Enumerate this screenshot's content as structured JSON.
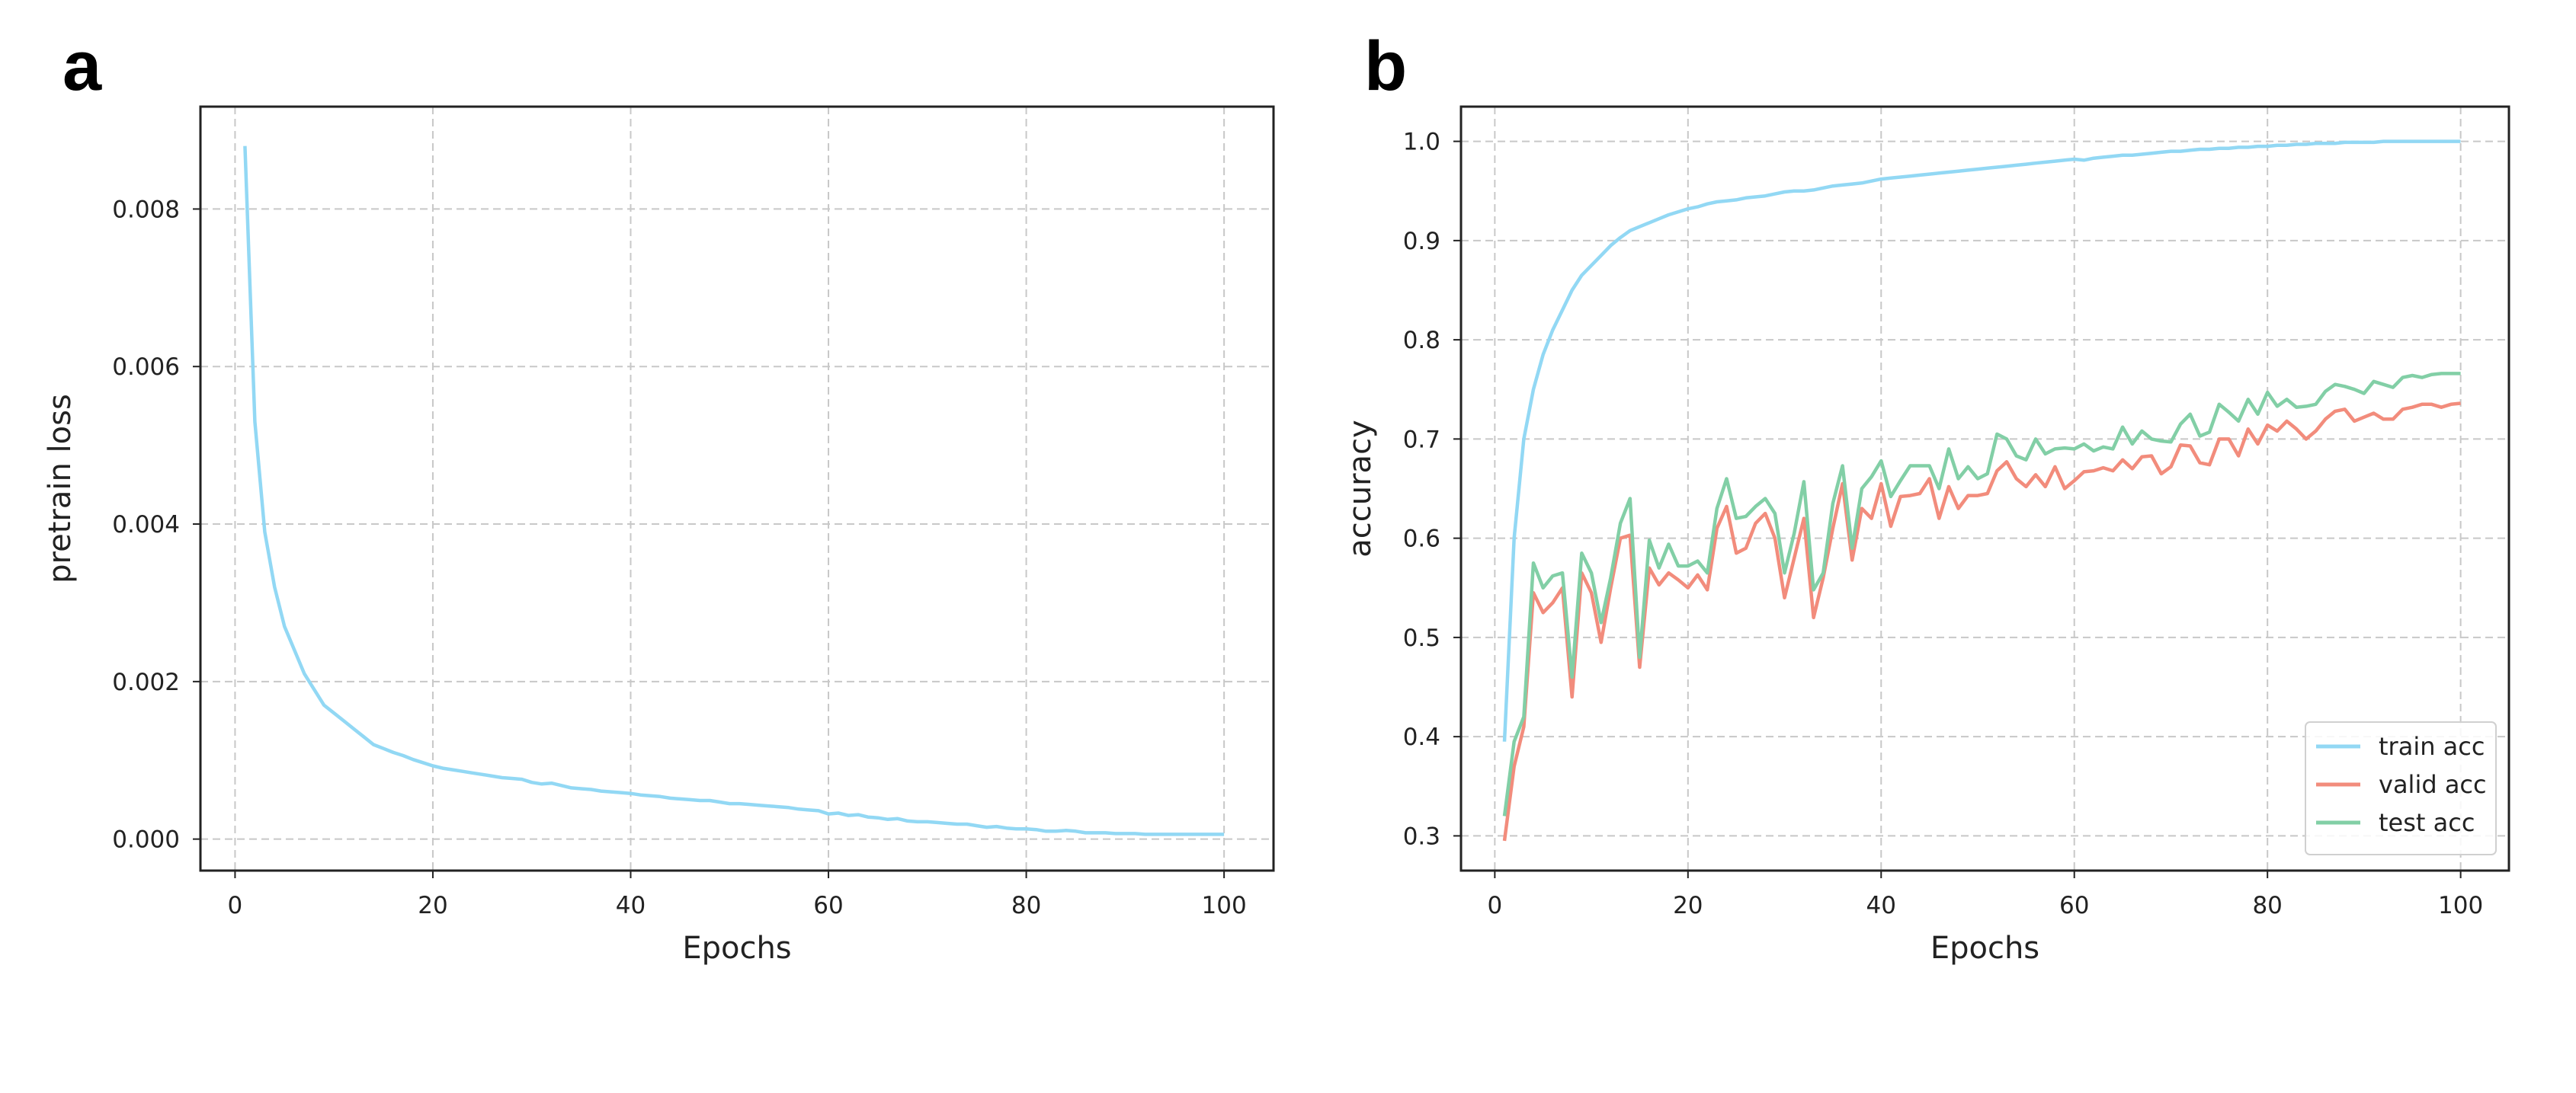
{
  "chart_data": [
    {
      "panel": "a",
      "type": "line",
      "title": "",
      "xlabel": "Epochs",
      "ylabel": "pretrain loss",
      "xlim": [
        -3.5,
        105
      ],
      "ylim": [
        -0.0004,
        0.0093
      ],
      "xticks": [
        0,
        20,
        40,
        60,
        80,
        100
      ],
      "xtick_labels": [
        "0",
        "20",
        "40",
        "60",
        "80",
        "100"
      ],
      "yticks": [
        0,
        0.002,
        0.004,
        0.006,
        0.008
      ],
      "ytick_labels": [
        "0.000",
        "0.002",
        "0.004",
        "0.006",
        "0.008"
      ],
      "grid": true,
      "series": [
        {
          "name": "pretrain loss",
          "color": "#92d8f4",
          "values": [
            0.0088,
            0.0053,
            0.0039,
            0.0032,
            0.0027,
            0.0024,
            0.0021,
            0.0019,
            0.0017,
            0.0016,
            0.0015,
            0.0014,
            0.0013,
            0.0012,
            0.00115,
            0.0011,
            0.00106,
            0.00101,
            0.00097,
            0.00093,
            0.0009,
            0.00088,
            0.00086,
            0.00084,
            0.00082,
            0.0008,
            0.00078,
            0.00077,
            0.00076,
            0.00072,
            0.0007,
            0.00071,
            0.00068,
            0.00065,
            0.00064,
            0.00063,
            0.00061,
            0.0006,
            0.00059,
            0.00058,
            0.00056,
            0.00055,
            0.00054,
            0.00052,
            0.00051,
            0.0005,
            0.00049,
            0.00049,
            0.00047,
            0.00045,
            0.00045,
            0.00044,
            0.00043,
            0.00042,
            0.00041,
            0.0004,
            0.00038,
            0.00037,
            0.00036,
            0.00032,
            0.00033,
            0.0003,
            0.00031,
            0.00028,
            0.00027,
            0.00025,
            0.00026,
            0.00023,
            0.00022,
            0.00022,
            0.00021,
            0.0002,
            0.00019,
            0.00019,
            0.00017,
            0.00015,
            0.00016,
            0.00014,
            0.00013,
            0.00013,
            0.00012,
            0.0001,
            0.0001,
            0.00011,
            0.0001,
            8e-05,
            8e-05,
            8e-05,
            7e-05,
            7e-05,
            7e-05,
            6e-05,
            6e-05,
            6e-05,
            6e-05,
            6e-05,
            6e-05,
            6e-05,
            6e-05,
            6e-05
          ]
        }
      ]
    },
    {
      "panel": "b",
      "type": "line",
      "title": "",
      "xlabel": "Epochs",
      "ylabel": "accuracy",
      "xlim": [
        -3.5,
        105
      ],
      "ylim": [
        0.265,
        1.035
      ],
      "xticks": [
        0,
        20,
        40,
        60,
        80,
        100
      ],
      "xtick_labels": [
        "0",
        "20",
        "40",
        "60",
        "80",
        "100"
      ],
      "yticks": [
        0.3,
        0.4,
        0.5,
        0.6,
        0.7,
        0.8,
        0.9,
        1.0
      ],
      "ytick_labels": [
        "0.3",
        "0.4",
        "0.5",
        "0.6",
        "0.7",
        "0.8",
        "0.9",
        "1.0"
      ],
      "grid": true,
      "legend_position": "lower-right",
      "series": [
        {
          "name": "train acc",
          "color": "#92d8f4",
          "values": [
            0.395,
            0.6,
            0.7,
            0.75,
            0.785,
            0.81,
            0.83,
            0.85,
            0.865,
            0.875,
            0.885,
            0.895,
            0.903,
            0.91,
            0.914,
            0.918,
            0.922,
            0.926,
            0.929,
            0.932,
            0.934,
            0.937,
            0.939,
            0.94,
            0.941,
            0.943,
            0.944,
            0.945,
            0.947,
            0.949,
            0.95,
            0.95,
            0.951,
            0.953,
            0.955,
            0.956,
            0.957,
            0.958,
            0.96,
            0.962,
            0.963,
            0.964,
            0.965,
            0.966,
            0.967,
            0.968,
            0.969,
            0.97,
            0.971,
            0.972,
            0.973,
            0.974,
            0.975,
            0.976,
            0.977,
            0.978,
            0.979,
            0.98,
            0.981,
            0.982,
            0.981,
            0.983,
            0.984,
            0.985,
            0.986,
            0.986,
            0.987,
            0.988,
            0.989,
            0.99,
            0.99,
            0.991,
            0.992,
            0.992,
            0.993,
            0.993,
            0.994,
            0.994,
            0.995,
            0.995,
            0.996,
            0.996,
            0.997,
            0.997,
            0.998,
            0.998,
            0.998,
            0.999,
            0.999,
            0.999,
            0.999,
            1.0,
            1.0,
            1.0,
            1.0,
            1.0,
            1.0,
            1.0,
            1.0,
            1.0
          ]
        },
        {
          "name": "valid acc",
          "color": "#f28c7c",
          "values": [
            0.295,
            0.37,
            0.41,
            0.545,
            0.525,
            0.535,
            0.55,
            0.44,
            0.565,
            0.545,
            0.495,
            0.55,
            0.6,
            0.603,
            0.47,
            0.57,
            0.553,
            0.565,
            0.558,
            0.55,
            0.563,
            0.548,
            0.61,
            0.632,
            0.585,
            0.59,
            0.615,
            0.625,
            0.6,
            0.54,
            0.58,
            0.62,
            0.52,
            0.56,
            0.61,
            0.655,
            0.578,
            0.63,
            0.62,
            0.655,
            0.612,
            0.642,
            0.643,
            0.645,
            0.66,
            0.62,
            0.652,
            0.63,
            0.643,
            0.643,
            0.645,
            0.668,
            0.677,
            0.66,
            0.652,
            0.664,
            0.652,
            0.672,
            0.65,
            0.658,
            0.667,
            0.668,
            0.671,
            0.668,
            0.679,
            0.67,
            0.682,
            0.683,
            0.665,
            0.672,
            0.694,
            0.693,
            0.676,
            0.674,
            0.7,
            0.7,
            0.683,
            0.71,
            0.695,
            0.714,
            0.708,
            0.718,
            0.71,
            0.7,
            0.708,
            0.72,
            0.728,
            0.73,
            0.718,
            0.722,
            0.726,
            0.72,
            0.72,
            0.73,
            0.732,
            0.735,
            0.735,
            0.732,
            0.735,
            0.736
          ]
        },
        {
          "name": "test acc",
          "color": "#82cfa6",
          "values": [
            0.32,
            0.395,
            0.42,
            0.575,
            0.55,
            0.562,
            0.565,
            0.46,
            0.585,
            0.565,
            0.515,
            0.56,
            0.615,
            0.64,
            0.48,
            0.598,
            0.57,
            0.594,
            0.572,
            0.572,
            0.577,
            0.565,
            0.63,
            0.66,
            0.62,
            0.622,
            0.632,
            0.64,
            0.625,
            0.565,
            0.605,
            0.657,
            0.548,
            0.565,
            0.635,
            0.673,
            0.59,
            0.65,
            0.662,
            0.678,
            0.642,
            0.658,
            0.673,
            0.673,
            0.673,
            0.65,
            0.69,
            0.66,
            0.672,
            0.66,
            0.665,
            0.705,
            0.7,
            0.683,
            0.679,
            0.7,
            0.685,
            0.69,
            0.691,
            0.69,
            0.695,
            0.688,
            0.692,
            0.69,
            0.712,
            0.695,
            0.708,
            0.7,
            0.698,
            0.697,
            0.715,
            0.725,
            0.703,
            0.707,
            0.735,
            0.727,
            0.718,
            0.74,
            0.725,
            0.747,
            0.733,
            0.74,
            0.732,
            0.733,
            0.735,
            0.748,
            0.755,
            0.753,
            0.75,
            0.746,
            0.758,
            0.755,
            0.752,
            0.762,
            0.764,
            0.762,
            0.765,
            0.766,
            0.766,
            0.766
          ]
        }
      ]
    }
  ],
  "panels": {
    "a_label": "a",
    "b_label": "b"
  }
}
